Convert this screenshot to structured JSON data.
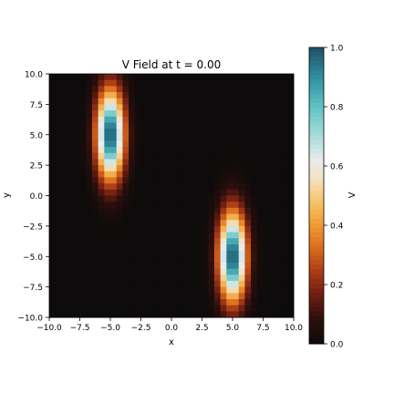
{
  "chart_data": {
    "type": "heatmap",
    "title": "V Field at t = 0.00",
    "xlabel": "x",
    "ylabel": "y",
    "xlim": [
      -10,
      10
    ],
    "ylim": [
      -10,
      10
    ],
    "x_ticks": [
      "−10.0",
      "−7.5",
      "−5.0",
      "−2.5",
      "0.0",
      "2.5",
      "5.0",
      "7.5",
      "10.0"
    ],
    "y_ticks": [
      "10.0",
      "7.5",
      "5.0",
      "2.5",
      "0.0",
      "−2.5",
      "−5.0",
      "−7.5",
      "−10.0"
    ],
    "grid": false,
    "grid_cells": [
      40,
      40
    ],
    "blobs": [
      {
        "x": -5.0,
        "y": 5.0,
        "amplitude": 1.0,
        "sigma_x": 0.8,
        "sigma_y": 2.6
      },
      {
        "x": 5.0,
        "y": -5.0,
        "amplitude": 1.0,
        "sigma_x": 0.8,
        "sigma_y": 2.6
      }
    ],
    "colorbar": {
      "label": "V",
      "range": [
        0.0,
        1.0
      ],
      "ticks": [
        "1.0",
        "0.8",
        "0.6",
        "0.4",
        "0.2",
        "0.0"
      ],
      "colormap_stops": [
        {
          "v": 0.0,
          "color": "#0d0b0b"
        },
        {
          "v": 0.08,
          "color": "#2a0f0c"
        },
        {
          "v": 0.16,
          "color": "#6a1d12"
        },
        {
          "v": 0.24,
          "color": "#a83a16"
        },
        {
          "v": 0.32,
          "color": "#d96a1c"
        },
        {
          "v": 0.4,
          "color": "#f09a33"
        },
        {
          "v": 0.48,
          "color": "#f7c56a"
        },
        {
          "v": 0.56,
          "color": "#f3e2c4"
        },
        {
          "v": 0.62,
          "color": "#e8ecec"
        },
        {
          "v": 0.7,
          "color": "#a9dcdb"
        },
        {
          "v": 0.8,
          "color": "#5fc1c4"
        },
        {
          "v": 0.9,
          "color": "#2f8fa0"
        },
        {
          "v": 1.0,
          "color": "#1f5066"
        }
      ]
    }
  }
}
